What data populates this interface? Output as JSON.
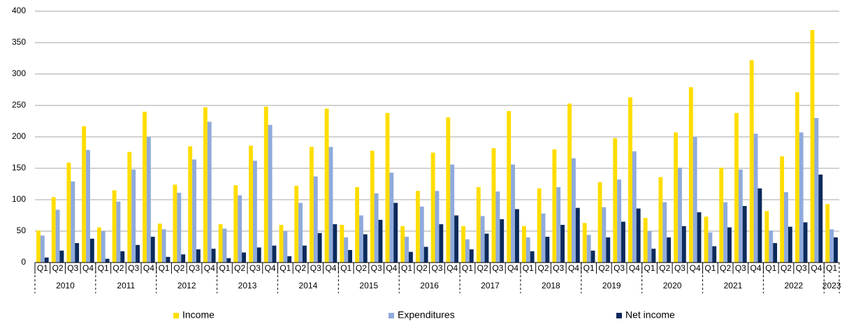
{
  "chart_data": {
    "type": "bar",
    "categories": [
      "Q1",
      "Q2",
      "Q3",
      "Q4",
      "Q1",
      "Q2",
      "Q3",
      "Q4",
      "Q1",
      "Q2",
      "Q3",
      "Q4",
      "Q1",
      "Q2",
      "Q3",
      "Q4",
      "Q1",
      "Q2",
      "Q3",
      "Q4",
      "Q1",
      "Q2",
      "Q3",
      "Q4",
      "Q1",
      "Q2",
      "Q3",
      "Q4",
      "Q1",
      "Q2",
      "Q3",
      "Q4",
      "Q1",
      "Q2",
      "Q3",
      "Q4",
      "Q1",
      "Q2",
      "Q3",
      "Q4",
      "Q1",
      "Q2",
      "Q3",
      "Q4",
      "Q1",
      "Q2",
      "Q3",
      "Q4",
      "Q1",
      "Q2",
      "Q3",
      "Q4",
      "Q1"
    ],
    "years": [
      "2010",
      "2011",
      "2012",
      "2013",
      "2014",
      "2015",
      "2016",
      "2017",
      "2018",
      "2019",
      "2020",
      "2021",
      "2022",
      "2023"
    ],
    "series": [
      {
        "name": "Income",
        "color": "#ffdd00",
        "values": [
          51,
          104,
          159,
          217,
          56,
          115,
          176,
          240,
          62,
          124,
          185,
          247,
          61,
          123,
          186,
          248,
          60,
          122,
          184,
          245,
          60,
          120,
          178,
          238,
          58,
          114,
          175,
          231,
          58,
          120,
          182,
          241,
          58,
          118,
          180,
          253,
          63,
          128,
          198,
          263,
          71,
          136,
          207,
          279,
          73,
          151,
          238,
          322,
          82,
          169,
          271,
          370,
          93
        ]
      },
      {
        "name": "Expenditures",
        "color": "#8faadc",
        "values": [
          43,
          84,
          129,
          179,
          50,
          97,
          148,
          200,
          53,
          111,
          164,
          224,
          54,
          107,
          162,
          219,
          50,
          95,
          137,
          184,
          40,
          75,
          110,
          143,
          41,
          89,
          114,
          156,
          37,
          74,
          113,
          156,
          40,
          78,
          120,
          166,
          44,
          88,
          132,
          177,
          50,
          96,
          151,
          200,
          48,
          96,
          148,
          205,
          51,
          112,
          207,
          230,
          53
        ]
      },
      {
        "name": "Net income",
        "color": "#0b2a5c",
        "values": [
          8,
          19,
          31,
          38,
          6,
          18,
          28,
          41,
          9,
          13,
          21,
          22,
          7,
          16,
          24,
          27,
          10,
          27,
          47,
          61,
          20,
          45,
          68,
          95,
          17,
          25,
          61,
          75,
          21,
          46,
          69,
          85,
          18,
          41,
          60,
          87,
          19,
          40,
          65,
          86,
          22,
          40,
          58,
          80,
          26,
          56,
          90,
          118,
          31,
          57,
          64,
          140,
          40
        ]
      }
    ],
    "ylim": [
      0,
      400
    ],
    "yticks": [
      0,
      50,
      100,
      150,
      200,
      250,
      300,
      350,
      400
    ],
    "grid": true,
    "legend": "bottom"
  }
}
